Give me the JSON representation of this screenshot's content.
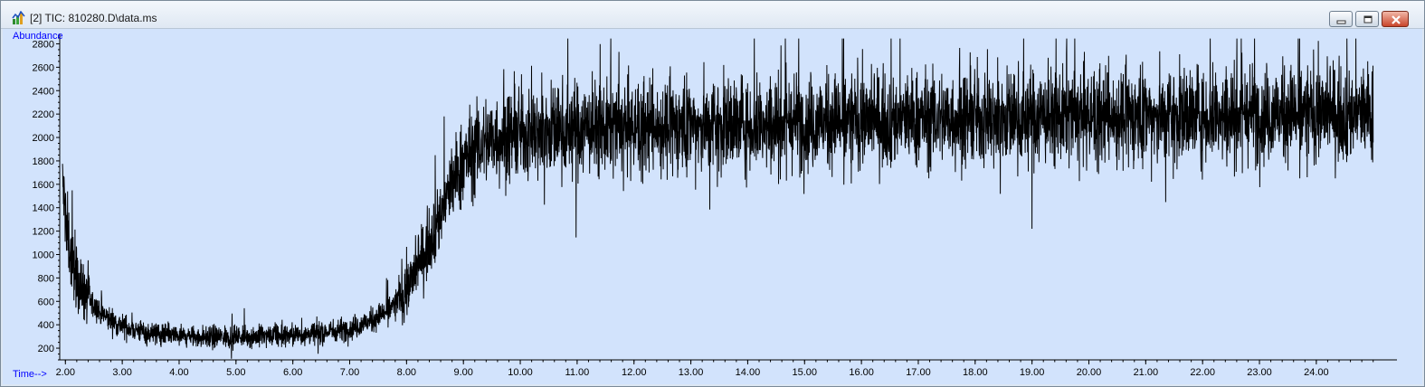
{
  "window": {
    "title": "[2] TIC: 810280.D\\data.ms",
    "icon": "chromatogram-app-icon",
    "controls": [
      "minimize-icon",
      "restore-icon",
      "close-icon"
    ]
  },
  "colors": {
    "plot_background": "#d2e3fc",
    "trace": "#000000",
    "axis_label": "#0000ff"
  },
  "chart_data": {
    "type": "line",
    "title": "",
    "xlabel": "Time-->",
    "ylabel": "Abundance",
    "xlim": [
      1.9,
      25.1
    ],
    "ylim": [
      100,
      2850
    ],
    "grid": false,
    "x_ticks": [
      2.0,
      3.0,
      4.0,
      5.0,
      6.0,
      7.0,
      8.0,
      9.0,
      10.0,
      11.0,
      12.0,
      13.0,
      14.0,
      15.0,
      16.0,
      17.0,
      18.0,
      19.0,
      20.0,
      21.0,
      22.0,
      23.0,
      24.0
    ],
    "x_tick_labels": [
      "2.00",
      "3.00",
      "4.00",
      "5.00",
      "6.00",
      "7.00",
      "8.00",
      "9.00",
      "10.00",
      "11.00",
      "12.00",
      "13.00",
      "14.00",
      "15.00",
      "16.00",
      "17.00",
      "18.00",
      "19.00",
      "20.00",
      "21.00",
      "22.00",
      "23.00",
      "24.00"
    ],
    "y_ticks": [
      200,
      400,
      600,
      800,
      1000,
      1200,
      1400,
      1600,
      1800,
      2000,
      2200,
      2400,
      2600,
      2800
    ],
    "y_tick_labels": [
      "200",
      "400",
      "600",
      "800",
      "1000",
      "1200",
      "1400",
      "1600",
      "1800",
      "2000",
      "2200",
      "2400",
      "2600",
      "2800"
    ],
    "series": [
      {
        "x": [
          1.95,
          2.0,
          2.05,
          2.1,
          2.2,
          2.3,
          2.4,
          2.5,
          2.6,
          2.7,
          2.8,
          2.9,
          3.0,
          3.2,
          3.4,
          3.6,
          3.8,
          4.0,
          4.5,
          5.0,
          5.5,
          6.0,
          6.5,
          7.0,
          7.2,
          7.4,
          7.6,
          7.8,
          8.0,
          8.1,
          8.2,
          8.3,
          8.4,
          8.5,
          8.6,
          8.7,
          8.8,
          8.9,
          9.0,
          9.1,
          9.2,
          9.3,
          9.4,
          9.6,
          9.8,
          10.0,
          10.5,
          11.0,
          12.0,
          13.0,
          14.0,
          15.0,
          16.0,
          17.0,
          18.0,
          19.0,
          20.0,
          21.0,
          22.0,
          23.0,
          24.0,
          24.5,
          25.0
        ],
        "y": [
          1600,
          1350,
          1150,
          950,
          800,
          700,
          620,
          560,
          510,
          470,
          440,
          410,
          390,
          360,
          340,
          320,
          310,
          300,
          295,
          300,
          300,
          310,
          330,
          370,
          400,
          440,
          500,
          580,
          700,
          800,
          900,
          1000,
          1120,
          1240,
          1350,
          1480,
          1600,
          1700,
          1790,
          1850,
          1900,
          1940,
          1970,
          2000,
          2020,
          2040,
          2060,
          2070,
          2080,
          2100,
          2120,
          2130,
          2150,
          2160,
          2170,
          2170,
          2180,
          2180,
          2200,
          2200,
          2210,
          2210,
          2210
        ]
      }
    ]
  }
}
